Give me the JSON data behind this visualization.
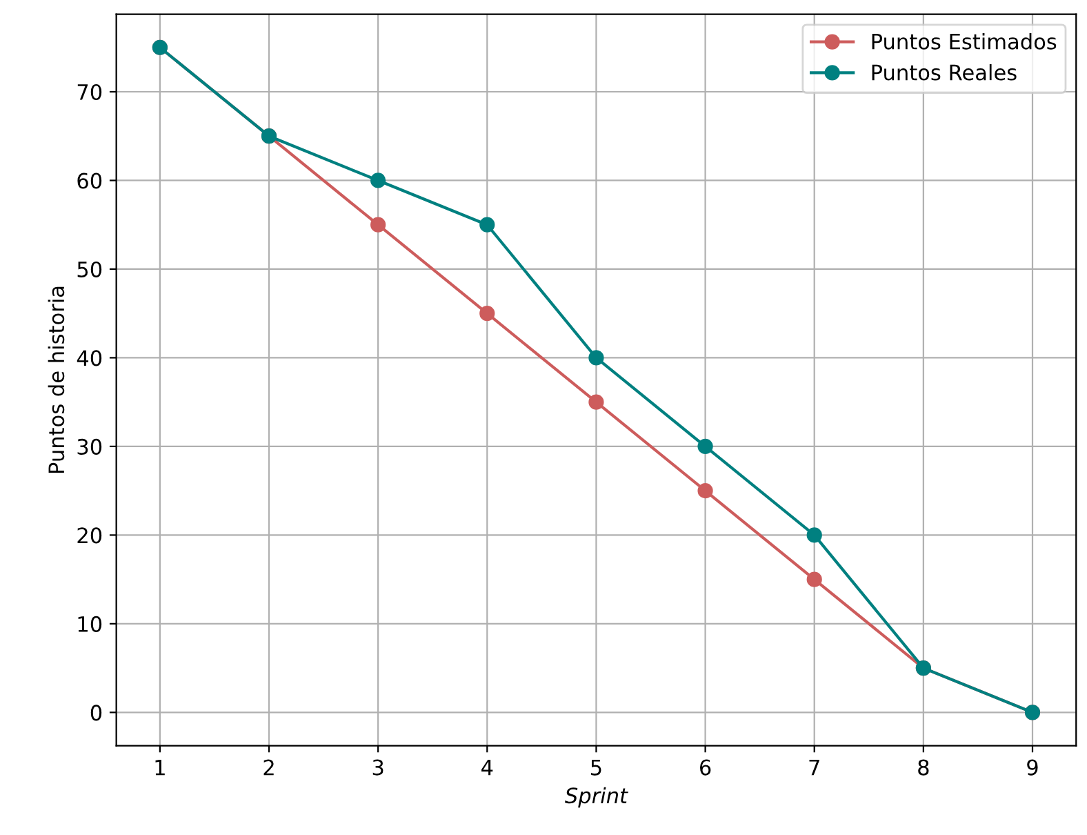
{
  "chart_data": {
    "type": "line",
    "xlabel": "Sprint",
    "ylabel": "Puntos de historia",
    "x": [
      1,
      2,
      3,
      4,
      5,
      6,
      7,
      8,
      9
    ],
    "series": [
      {
        "name": "Puntos Estimados",
        "color": "#cd5c5c",
        "values": [
          75,
          65,
          55,
          45,
          35,
          25,
          15,
          5,
          0
        ]
      },
      {
        "name": "Puntos Reales",
        "color": "#008080",
        "values": [
          75,
          65,
          60,
          55,
          40,
          30,
          20,
          5,
          0
        ]
      }
    ],
    "xlim": [
      0.6,
      9.4
    ],
    "xticks": [
      1,
      2,
      3,
      4,
      5,
      6,
      7,
      8,
      9
    ],
    "ylim": [
      -3.75,
      78.75
    ],
    "yticks": [
      0,
      10,
      20,
      30,
      40,
      50,
      60,
      70
    ],
    "grid": true,
    "legend": "top right",
    "marker": "circle",
    "line_style": "solid"
  }
}
